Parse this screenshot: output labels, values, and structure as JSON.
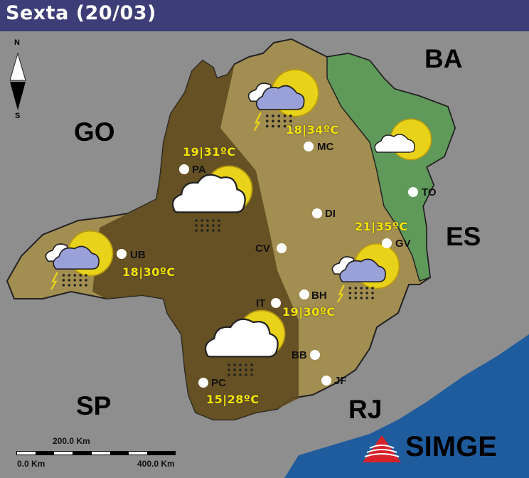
{
  "header": {
    "title": "Sexta (20/03)"
  },
  "compass": {
    "north": "N",
    "south": "S"
  },
  "states": [
    "BA",
    "GO",
    "ES",
    "SP",
    "RJ"
  ],
  "cities": [
    {
      "code": "MC",
      "temp": "18|34ºC",
      "icon": "sun-cloud-rain-storm-icon"
    },
    {
      "code": "PA",
      "temp": "19|31ºC",
      "icon": "sun-cloud-rain-icon"
    },
    {
      "code": "TO",
      "temp": "",
      "icon": "sun-cloud-icon"
    },
    {
      "code": "DI",
      "temp": ""
    },
    {
      "code": "GV",
      "temp": "21|35ºC"
    },
    {
      "code": "UB",
      "temp": "18|30ºC",
      "icon": "sun-cloud-rain-storm-icon"
    },
    {
      "code": "CV",
      "temp": ""
    },
    {
      "code": "BH",
      "temp": "19|30ºC",
      "icon": "sun-cloud-rain-storm-icon"
    },
    {
      "code": "IT",
      "temp": ""
    },
    {
      "code": "BB",
      "temp": ""
    },
    {
      "code": "JF",
      "temp": ""
    },
    {
      "code": "PC",
      "temp": "15|28ºC",
      "icon": "sun-cloud-rain-icon"
    }
  ],
  "scale": {
    "mid": "200.0 Km",
    "start": "0.0 Km",
    "end": "400.0 Km"
  },
  "logo": {
    "text": "SIMGE"
  },
  "colors": {
    "header": "#3d3d78",
    "background": "#8e8e8e",
    "region_dark": "#5e4a1e",
    "region_tan": "#a38e52",
    "region_green": "#5f9a5a",
    "ocean": "#1f5c9e",
    "temp_text": "#f5e400",
    "logo": "#d8222a"
  }
}
